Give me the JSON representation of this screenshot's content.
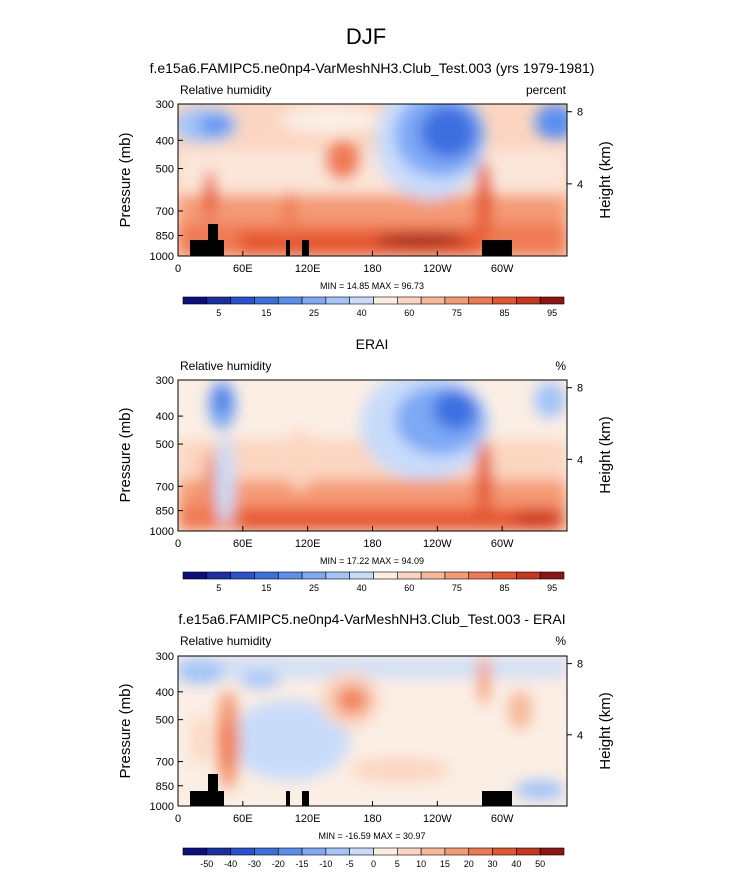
{
  "title": "DJF",
  "panels": [
    {
      "id": "model",
      "title": "f.e15a6.FAMIPC5.ne0np4-VarMeshNH3.Club_Test.003 (yrs 1979-1981)",
      "left_label": "Relative humidity",
      "right_label": "percent",
      "ylabel": "Pressure (mb)",
      "ylabel_right": "Height (km)",
      "stats": "MIN = 14.85 MAX = 96.73",
      "xticks": [
        "0",
        "60E",
        "120E",
        "180",
        "120W",
        "60W"
      ],
      "yticks": [
        "300",
        "400",
        "500",
        "700",
        "850",
        "1000"
      ],
      "rticks": [
        "8",
        "4"
      ],
      "colorbar_labels": [
        "5",
        "15",
        "25",
        "40",
        "60",
        "75",
        "85",
        "95"
      ]
    },
    {
      "id": "obs",
      "title": "ERAI",
      "left_label": "Relative humidity",
      "right_label": "%",
      "ylabel": "Pressure (mb)",
      "ylabel_right": "Height (km)",
      "stats": "MIN = 17.22 MAX = 94.09",
      "xticks": [
        "0",
        "60E",
        "120E",
        "180",
        "120W",
        "60W"
      ],
      "yticks": [
        "300",
        "400",
        "500",
        "700",
        "850",
        "1000"
      ],
      "rticks": [
        "8",
        "4"
      ],
      "colorbar_labels": [
        "5",
        "15",
        "25",
        "40",
        "60",
        "75",
        "85",
        "95"
      ]
    },
    {
      "id": "diff",
      "title": "f.e15a6.FAMIPC5.ne0np4-VarMeshNH3.Club_Test.003 - ERAI",
      "left_label": "Relative humidity",
      "right_label": "%",
      "ylabel": "Pressure (mb)",
      "ylabel_right": "Height (km)",
      "stats": "MIN = -16.59 MAX = 30.97",
      "xticks": [
        "0",
        "60E",
        "120E",
        "180",
        "120W",
        "60W"
      ],
      "yticks": [
        "300",
        "400",
        "500",
        "700",
        "850",
        "1000"
      ],
      "rticks": [
        "8",
        "4"
      ],
      "colorbar_labels": [
        "-50",
        "-40",
        "-30",
        "-20",
        "-15",
        "-10",
        "-5",
        "0",
        "5",
        "10",
        "15",
        "20",
        "30",
        "40",
        "50"
      ]
    }
  ],
  "chart_data": [
    {
      "type": "heatmap",
      "title": "f.e15a6.FAMIPC5.ne0np4-VarMeshNH3.Club_Test.003 (yrs 1979-1981)",
      "variable": "Relative humidity",
      "units": "percent",
      "x_range": [
        0,
        360
      ],
      "xticks": [
        0,
        60,
        120,
        180,
        240,
        300
      ],
      "y_scale": "log",
      "y_range": [
        1000,
        300
      ],
      "yticks": [
        300,
        400,
        500,
        700,
        850,
        1000
      ],
      "levels": [
        5,
        10,
        15,
        20,
        25,
        30,
        40,
        50,
        60,
        70,
        75,
        80,
        85,
        90,
        95
      ],
      "colors": [
        "#0d0d80",
        "#1a2fa8",
        "#2852d1",
        "#3c6fe0",
        "#5a8ff0",
        "#7da9f5",
        "#a3c4f8",
        "#c8dcfa",
        "#fbeee4",
        "#fbd5c0",
        "#f8b898",
        "#f49a74",
        "#ef7a52",
        "#e4552f",
        "#c9351d",
        "#8f1515"
      ],
      "min": 14.85,
      "max": 96.73,
      "features": [
        {
          "kind": "dry",
          "lon": 12,
          "p": 420,
          "value": 35
        },
        {
          "kind": "dry",
          "lon": 30,
          "p": 400,
          "value": 30
        },
        {
          "kind": "dry",
          "lon": 245,
          "p": 420,
          "value": 15
        },
        {
          "kind": "dry",
          "lon": 350,
          "p": 400,
          "value": 20
        },
        {
          "kind": "moist",
          "lon": 145,
          "p": 600,
          "value": 75
        },
        {
          "kind": "moist",
          "lon": 30,
          "p": 700,
          "value": 82
        },
        {
          "kind": "moist",
          "lon": 280,
          "p": 850,
          "value": 92
        },
        {
          "kind": "moist",
          "lon": 180,
          "p": 900,
          "value": 95
        }
      ],
      "topography": [
        [
          10,
          25,
          920
        ],
        [
          25,
          32,
          860
        ],
        [
          32,
          38,
          920
        ],
        [
          100,
          103,
          920
        ],
        [
          115,
          120,
          920
        ],
        [
          280,
          300,
          920
        ]
      ]
    },
    {
      "type": "heatmap",
      "title": "ERAI",
      "variable": "Relative humidity",
      "units": "%",
      "x_range": [
        0,
        360
      ],
      "xticks": [
        0,
        60,
        120,
        180,
        240,
        300
      ],
      "y_scale": "log",
      "y_range": [
        1000,
        300
      ],
      "yticks": [
        300,
        400,
        500,
        700,
        850,
        1000
      ],
      "levels": [
        5,
        10,
        15,
        20,
        25,
        30,
        40,
        50,
        60,
        70,
        75,
        80,
        85,
        90,
        95
      ],
      "colors": [
        "#0d0d80",
        "#1a2fa8",
        "#2852d1",
        "#3c6fe0",
        "#5a8ff0",
        "#7da9f5",
        "#a3c4f8",
        "#c8dcfa",
        "#fbeee4",
        "#fbd5c0",
        "#f8b898",
        "#f49a74",
        "#ef7a52",
        "#e4552f",
        "#c9351d",
        "#8f1515"
      ],
      "min": 17.22,
      "max": 94.09,
      "features": [
        {
          "kind": "dry",
          "lon": 42,
          "p": 420,
          "value": 30
        },
        {
          "kind": "dry",
          "lon": 250,
          "p": 430,
          "value": 20
        },
        {
          "kind": "dry",
          "lon": 345,
          "p": 420,
          "value": 35
        },
        {
          "kind": "moist",
          "lon": 110,
          "p": 650,
          "value": 70
        },
        {
          "kind": "moist",
          "lon": 285,
          "p": 850,
          "value": 90
        },
        {
          "kind": "moist",
          "lon": 180,
          "p": 920,
          "value": 90
        }
      ]
    },
    {
      "type": "heatmap",
      "title": "f.e15a6.FAMIPC5.ne0np4-VarMeshNH3.Club_Test.003 - ERAI",
      "variable": "Relative humidity",
      "units": "%",
      "x_range": [
        0,
        360
      ],
      "xticks": [
        0,
        60,
        120,
        180,
        240,
        300
      ],
      "y_scale": "log",
      "y_range": [
        1000,
        300
      ],
      "yticks": [
        300,
        400,
        500,
        700,
        850,
        1000
      ],
      "levels": [
        -50,
        -40,
        -30,
        -20,
        -15,
        -10,
        -5,
        0,
        5,
        10,
        15,
        20,
        30,
        40,
        50
      ],
      "colors": [
        "#0d0d80",
        "#1a2fa8",
        "#2852d1",
        "#3c6fe0",
        "#5a8ff0",
        "#7da9f5",
        "#a3c4f8",
        "#c8dcfa",
        "#fbeee4",
        "#fbd5c0",
        "#f8b898",
        "#f49a74",
        "#ef7a52",
        "#e4552f",
        "#c9351d",
        "#8f1515"
      ],
      "min": -16.59,
      "max": 30.97,
      "features": [
        {
          "kind": "negative",
          "lon": 10,
          "p": 360,
          "value": -10
        },
        {
          "kind": "negative",
          "lon": 80,
          "p": 400,
          "value": -5
        },
        {
          "kind": "negative",
          "lon": 160,
          "p": 800,
          "value": -5
        },
        {
          "kind": "positive",
          "lon": 45,
          "p": 700,
          "value": 25
        },
        {
          "kind": "positive",
          "lon": 160,
          "p": 500,
          "value": 20
        },
        {
          "kind": "positive",
          "lon": 285,
          "p": 350,
          "value": 15
        },
        {
          "kind": "positive",
          "lon": 320,
          "p": 500,
          "value": 15
        }
      ],
      "topography": [
        [
          10,
          25,
          920
        ],
        [
          25,
          32,
          860
        ],
        [
          32,
          38,
          920
        ],
        [
          100,
          103,
          920
        ],
        [
          115,
          120,
          920
        ],
        [
          280,
          300,
          920
        ]
      ]
    }
  ]
}
